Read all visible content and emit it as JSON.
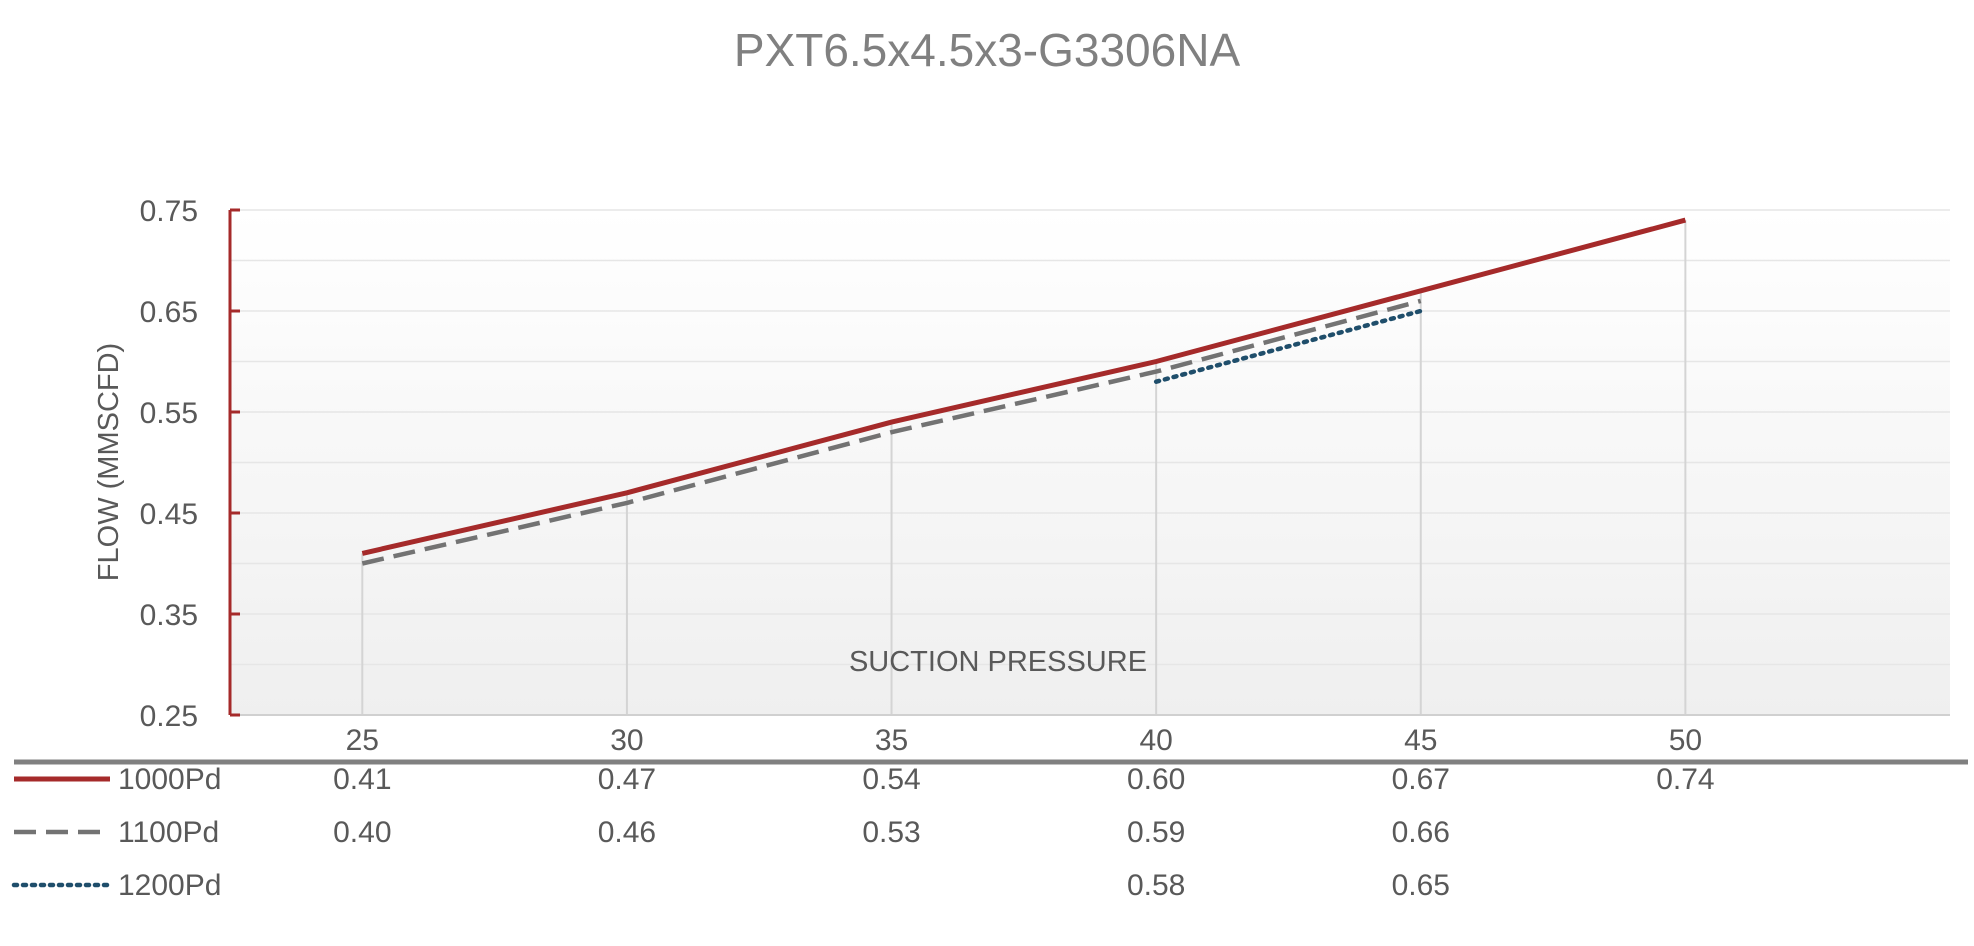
{
  "chart_data": {
    "type": "line",
    "title": "PXT6.5x4.5x3-G3306NA",
    "xlabel": "SUCTION PRESSURE",
    "ylabel": "FLOW (MMSCFD)",
    "categories": [
      "25",
      "30",
      "35",
      "40",
      "45",
      "50"
    ],
    "ylim": [
      0.25,
      0.75
    ],
    "yticks": [
      "0.75",
      "0.65",
      "0.55",
      "0.45",
      "0.35",
      "0.25"
    ],
    "ytick_values": [
      0.75,
      0.65,
      0.55,
      0.45,
      0.35,
      0.25
    ],
    "grid": true,
    "legend_position": "data-table-bottom",
    "series": [
      {
        "name": "1000Pd",
        "color": "#a52a2a",
        "dash": "solid",
        "values": [
          0.41,
          0.47,
          0.54,
          0.6,
          0.67,
          0.74
        ],
        "labels": [
          "0.41",
          "0.47",
          "0.54",
          "0.60",
          "0.67",
          "0.74"
        ]
      },
      {
        "name": "1100Pd",
        "color": "#737373",
        "dash": "dashed",
        "values": [
          0.4,
          0.46,
          0.53,
          0.59,
          0.66,
          null
        ],
        "labels": [
          "0.40",
          "0.46",
          "0.53",
          "0.59",
          "0.66",
          ""
        ]
      },
      {
        "name": "1200Pd",
        "color": "#1f4e6b",
        "dash": "dotted",
        "values": [
          null,
          null,
          null,
          0.58,
          0.65,
          null
        ],
        "labels": [
          "",
          "",
          "",
          "0.58",
          "0.65",
          ""
        ]
      }
    ]
  },
  "colors": {
    "axis_accent": "#a52a2a",
    "grid": "#e6e6e6",
    "table_rule": "#808080"
  }
}
